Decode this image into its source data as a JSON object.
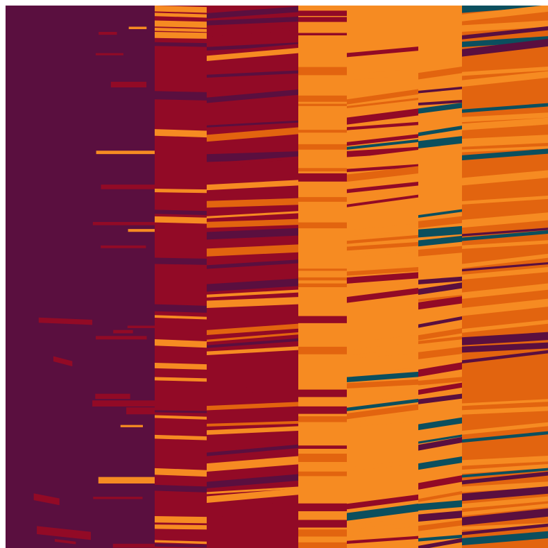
{
  "palette": {
    "plum": "#5a0f3f",
    "crimson": "#920a26",
    "orange": "#f68b22",
    "burnt_orange": "#e2640f",
    "teal": "#0b4f5e",
    "background": "#ffffff"
  }
}
